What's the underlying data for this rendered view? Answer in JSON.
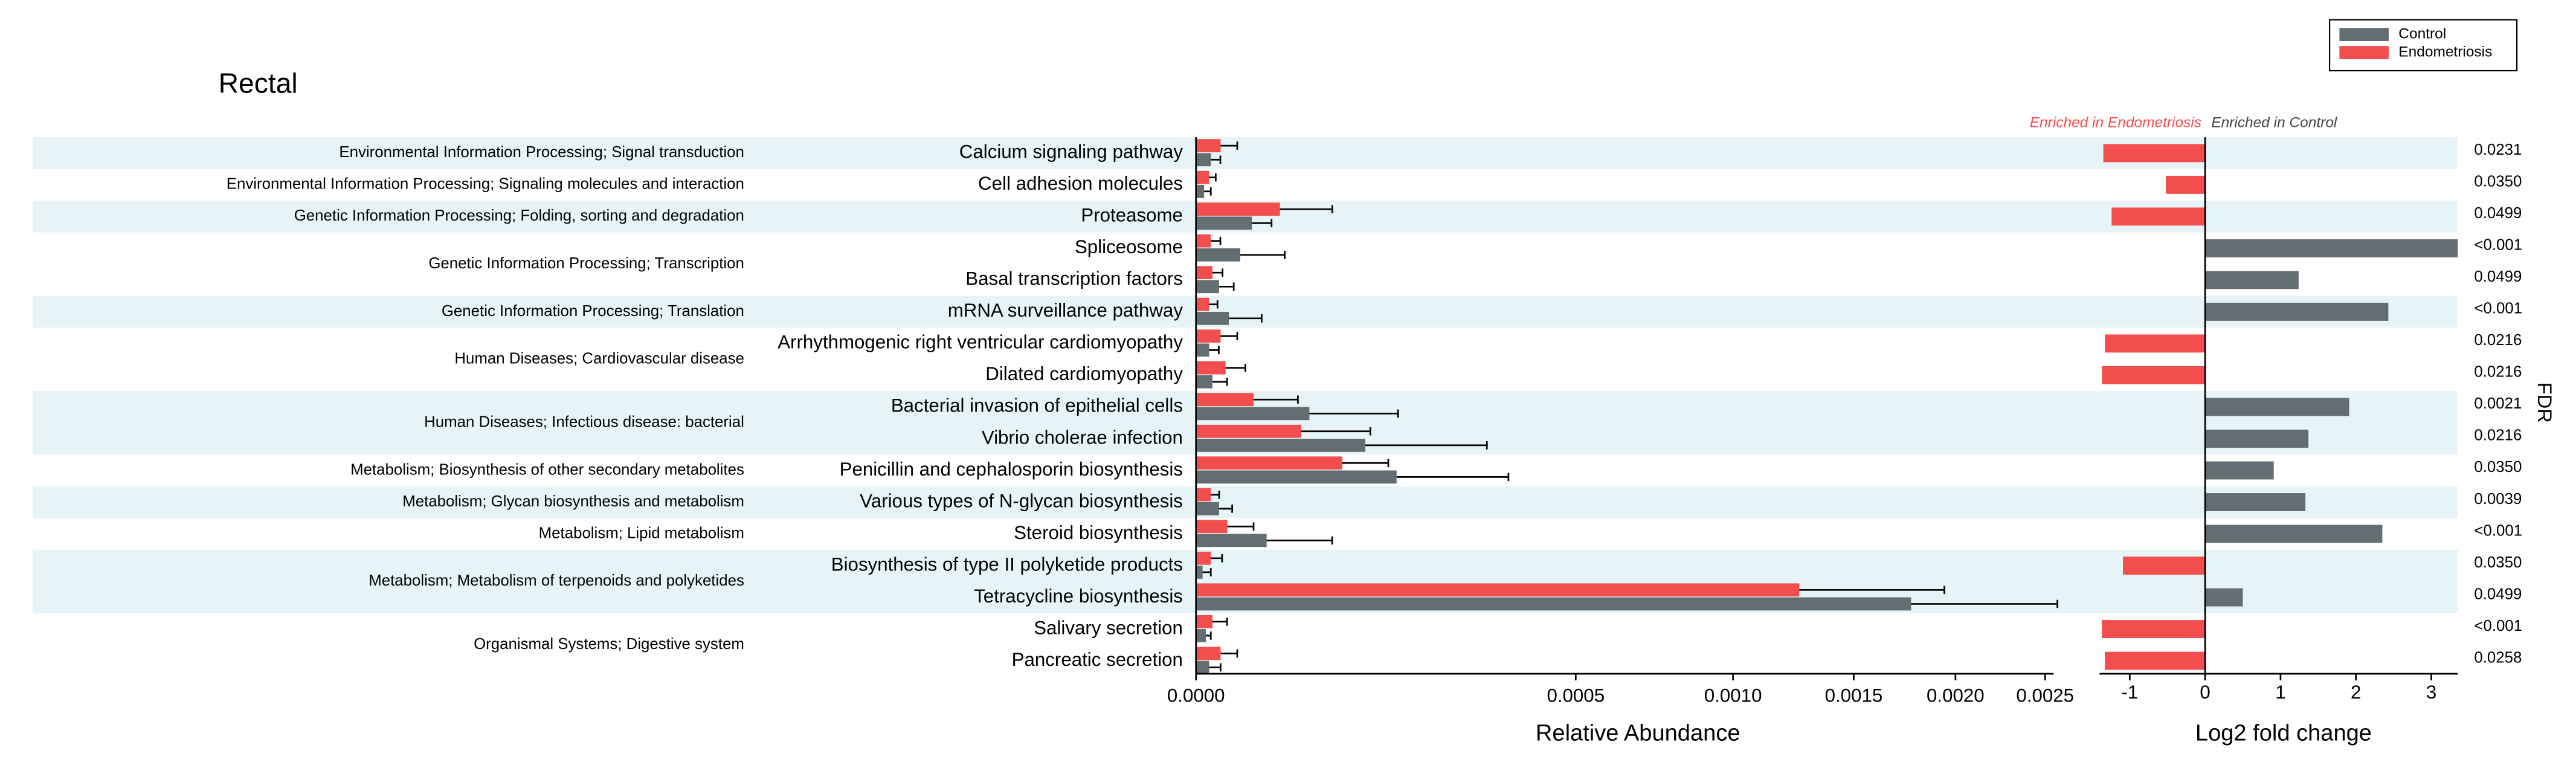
{
  "chart_data": {
    "type": "bar",
    "title": "Rectal",
    "legend": "upper right",
    "groups": [
      {
        "name": "Environmental Information Processing; Signal transduction",
        "categories": [
          "Calcium signaling pathway"
        ]
      },
      {
        "name": "Environmental Information Processing; Signaling molecules and interaction",
        "categories": [
          "Cell adhesion molecules"
        ]
      },
      {
        "name": "Genetic Information Processing; Folding, sorting and degradation",
        "categories": [
          "Proteasome"
        ]
      },
      {
        "name": "Genetic Information Processing; Transcription",
        "categories": [
          "Spliceosome",
          "Basal transcription factors"
        ]
      },
      {
        "name": "Genetic Information Processing; Translation",
        "categories": [
          "mRNA surveillance pathway"
        ]
      },
      {
        "name": "Human Diseases; Cardiovascular disease",
        "categories": [
          "Arrhythmogenic right ventricular cardiomyopathy",
          "Dilated cardiomyopathy"
        ]
      },
      {
        "name": "Human Diseases; Infectious disease: bacterial",
        "categories": [
          "Bacterial invasion of epithelial cells",
          "Vibrio cholerae infection"
        ]
      },
      {
        "name": "Metabolism; Biosynthesis of other secondary metabolites",
        "categories": [
          "Penicillin and cephalosporin biosynthesis"
        ]
      },
      {
        "name": "Metabolism; Glycan biosynthesis and metabolism",
        "categories": [
          "Various types of N-glycan biosynthesis"
        ]
      },
      {
        "name": "Metabolism; Lipid metabolism",
        "categories": [
          "Steroid biosynthesis"
        ]
      },
      {
        "name": "Metabolism; Metabolism of terpenoids and polyketides",
        "categories": [
          "Biosynthesis of type II polyketide products",
          "Tetracycline biosynthesis"
        ]
      },
      {
        "name": "Organismal Systems; Digestive system",
        "categories": [
          "Salivary secretion",
          "Pancreatic secretion"
        ]
      }
    ],
    "series": [
      {
        "name": "Control",
        "color": "#636e72",
        "values": [
          7.6e-07,
          2.3e-07,
          1.08e-05,
          6.8e-06,
          1.84e-06,
          3.75e-06,
          6e-07,
          9.4e-07,
          4.46e-05,
          9.94e-05,
          0.0001395,
          1.84e-06,
          1.73e-05,
          1.5e-07,
          0.001773,
          3.4e-07,
          6e-07
        ],
        "errors": [
          1.3e-06,
          5.3e-07,
          9e-06,
          2.05e-05,
          3.1e-06,
          1.12e-05,
          1.2e-06,
          2.4e-06,
          9.7e-05,
          0.000194,
          0.000199,
          2.7e-06,
          4.7e-05,
          6.1e-07,
          0.0008,
          4.2e-07,
          1.5e-06
        ]
      },
      {
        "name": "Endometriosis",
        "color": "#f24e4e",
        "values": [
          2.1e-06,
          6e-07,
          2.44e-05,
          7.6e-07,
          9.4e-07,
          6e-07,
          2.1e-06,
          3.04e-06,
          1.15e-05,
          3.84e-05,
          7.42e-05,
          7.6e-07,
          3.4e-06,
          7.6e-07,
          0.001262,
          9.4e-07,
          2.1e-06
        ],
        "errors": [
          3.8e-06,
          7.5e-07,
          4e-05,
          1.3e-06,
          1.5e-06,
          1e-06,
          3.8e-06,
          5.4e-06,
          2.45e-05,
          6.7e-05,
          5.4e-05,
          1.1e-06,
          8.1e-06,
          1.6e-06,
          0.00068,
          2.4e-06,
          3.8e-06
        ]
      }
    ],
    "xlabel": "Relative Abundance",
    "xscale": "sqrt",
    "xlim": [
      0,
      0.00255
    ],
    "xticks": [
      {
        "value": 0,
        "label": "0.0000"
      },
      0.0005,
      {
        "value": 0.001,
        "label": "0.0010"
      },
      0.0015,
      {
        "value": 0.002,
        "label": "0.0020"
      },
      0.0025
    ],
    "fold_change": {
      "xlabel": "Log2 fold change",
      "xlim": [
        -1.4,
        3.35
      ],
      "xticks": [
        -1,
        0,
        1,
        2,
        3
      ],
      "annotations": [
        "Enriched in Endometriosis",
        "Enriched in Control"
      ],
      "values": [
        -1.35,
        -0.52,
        -1.24,
        3.35,
        1.24,
        2.43,
        -1.33,
        -1.37,
        1.91,
        1.37,
        0.91,
        1.33,
        2.35,
        -1.09,
        0.5,
        -1.37,
        -1.33
      ]
    },
    "fdr": {
      "label": "FDR",
      "labels": [
        "0.0231",
        "0.0350",
        "0.0499",
        "<0.001",
        "0.0499",
        "<0.001",
        "0.0216",
        "0.0216",
        "0.0021",
        "0.0216",
        "0.0350",
        "0.0039",
        "<0.001",
        "0.0350",
        "0.0499",
        "<0.001",
        "0.0258"
      ]
    }
  }
}
